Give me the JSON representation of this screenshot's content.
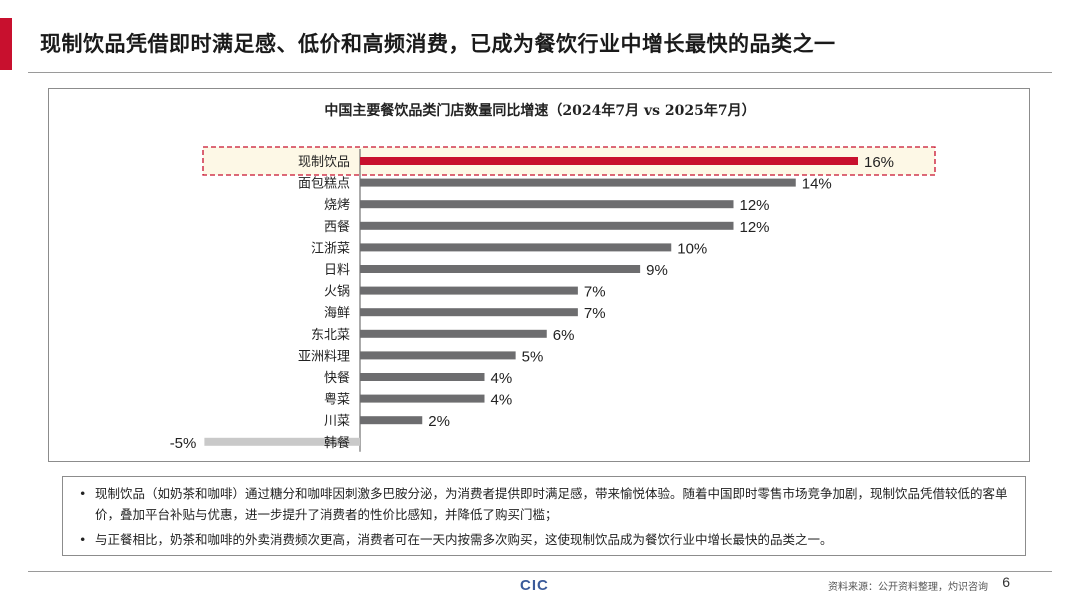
{
  "header": {
    "title": "现制饮品凭借即时满足感、低价和高频消费，已成为餐饮行业中增长最快的品类之一"
  },
  "colors": {
    "accent": "#c8102e",
    "highlight_bar": "#c8102e",
    "bar": "#6d6d6f",
    "negative_bar": "#c9c9c9",
    "highlight_fill": "#fdf8e6"
  },
  "chart_data": {
    "type": "bar",
    "orientation": "horizontal",
    "title": "中国主要餐饮品类门店数量同比增速（2024年7月 vs 2025年7月）",
    "categories": [
      "现制饮品",
      "面包糕点",
      "烧烤",
      "西餐",
      "江浙菜",
      "日料",
      "火锅",
      "海鲜",
      "东北菜",
      "亚洲料理",
      "快餐",
      "粤菜",
      "川菜",
      "韩餐"
    ],
    "values": [
      16,
      14,
      12,
      12,
      10,
      9,
      7,
      7,
      6,
      5,
      4,
      4,
      2,
      -5
    ],
    "value_labels": [
      "16%",
      "14%",
      "12%",
      "12%",
      "10%",
      "9%",
      "7%",
      "7%",
      "6%",
      "5%",
      "4%",
      "4%",
      "2%",
      "-5%"
    ],
    "unit": "%",
    "highlighted_category": "现制饮品",
    "xlim": [
      -5,
      16
    ]
  },
  "notes": [
    "现制饮品（如奶茶和咖啡）通过糖分和咖啡因刺激多巴胺分泌，为消费者提供即时满足感，带来愉悦体验。随着中国即时零售市场竞争加剧，现制饮品凭借较低的客单价，叠加平台补贴与优惠，进一步提升了消费者的性价比感知，并降低了购买门槛；",
    "与正餐相比，奶茶和咖啡的外卖消费频次更高，消费者可在一天内按需多次购买，这使现制饮品成为餐饮行业中增长最快的品类之一。"
  ],
  "footer": {
    "logo": "CIC",
    "source": "资料来源：公开资料整理，灼识咨询",
    "page_number": "6"
  }
}
